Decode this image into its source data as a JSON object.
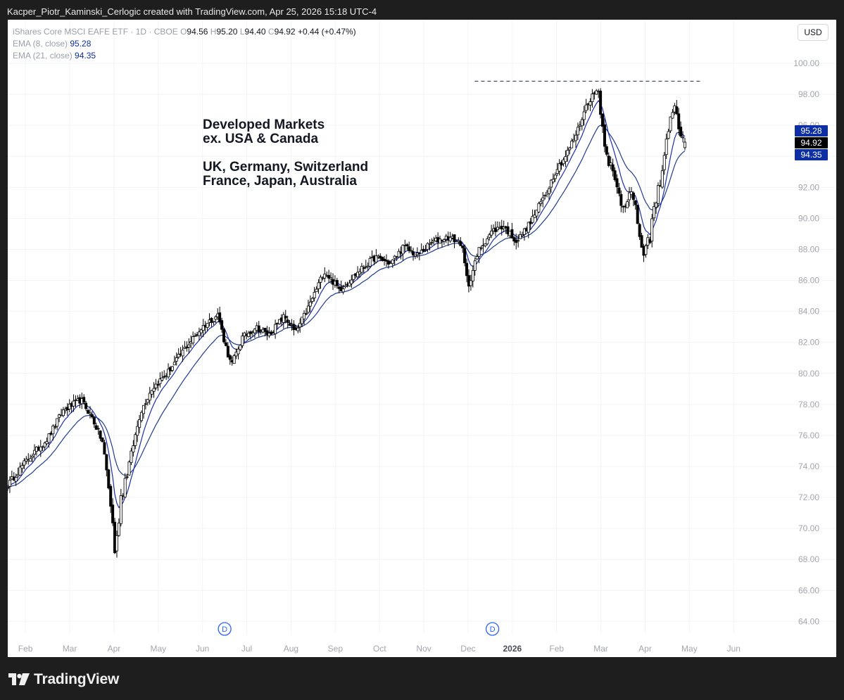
{
  "header": {
    "attribution": "Kacper_Piotr_Kaminski_Cerlogic created with TradingView.com, Apr 25, 2026 15:18 UTC-4"
  },
  "legend": {
    "symbol": "iShares Core MSCI EAFE ETF · 1D · CBOE",
    "o_label": "O",
    "o": "94.56",
    "h_label": "H",
    "h": "95.20",
    "l_label": "L",
    "l": "94.40",
    "c_label": "C",
    "c": "94.92",
    "change": "+0.44 (+0.47%)",
    "ema8_label": "EMA (8, close)",
    "ema8": "95.28",
    "ema21_label": "EMA (21, close)",
    "ema21": "94.35"
  },
  "currency_button": "USD",
  "annotation": {
    "line1": "Developed Markets",
    "line2": "ex. USA & Canada",
    "line3": "UK, Germany, Switzerland",
    "line4": "France, Japan, Australia"
  },
  "footer": {
    "brand": "TradingView"
  },
  "colors": {
    "ema8": "#1c2fa8",
    "ema21": "#203c8c",
    "candle": "#000000",
    "resistance": "#1f2a44"
  },
  "chart_data": {
    "type": "candlestick",
    "y_ticks": [
      "64.00",
      "66.00",
      "68.00",
      "70.00",
      "72.00",
      "74.00",
      "76.00",
      "78.00",
      "80.00",
      "82.00",
      "84.00",
      "86.00",
      "88.00",
      "90.00",
      "92.00",
      "94.00",
      "96.00",
      "98.00",
      "100.00"
    ],
    "ylim": [
      63.2,
      101.0
    ],
    "x_ticks": [
      "Feb",
      "Mar",
      "Apr",
      "May",
      "Jun",
      "Jul",
      "Aug",
      "Sep",
      "Oct",
      "Nov",
      "Dec",
      "2026",
      "Feb",
      "Mar",
      "Apr",
      "May",
      "Jun"
    ],
    "x_tick_months": [
      1,
      2,
      3,
      4,
      5,
      6,
      7,
      8,
      9,
      10,
      11,
      12,
      13,
      14,
      15,
      16,
      17
    ],
    "xlim_months": [
      0.6,
      18.3
    ],
    "series": [
      {
        "name": "EMA (8, close)",
        "last": 95.28
      },
      {
        "name": "EMA (21, close)",
        "last": 94.35
      }
    ],
    "price_labels": [
      {
        "label": "EMA (8, close)",
        "value": "95.28"
      },
      {
        "label": "Close",
        "value": "94.92"
      },
      {
        "label": "EMA (21, close)",
        "value": "94.35"
      }
    ],
    "resistance_level": 98.85,
    "resistance_range_months": [
      11.15,
      16.25
    ],
    "dividend_markers": [
      {
        "month": 5.5,
        "label": "D"
      },
      {
        "month": 11.55,
        "label": "D"
      }
    ],
    "close_anchors": [
      [
        0.6,
        72.8
      ],
      [
        1.0,
        74.3
      ],
      [
        1.5,
        75.8
      ],
      [
        1.85,
        77.6
      ],
      [
        2.25,
        78.3
      ],
      [
        2.5,
        77.2
      ],
      [
        2.75,
        75.5
      ],
      [
        2.95,
        71.0
      ],
      [
        3.03,
        68.2
      ],
      [
        3.15,
        72.0
      ],
      [
        3.35,
        74.3
      ],
      [
        3.6,
        77.5
      ],
      [
        3.85,
        79.0
      ],
      [
        4.2,
        80.0
      ],
      [
        4.6,
        81.6
      ],
      [
        5.0,
        83.0
      ],
      [
        5.35,
        83.8
      ],
      [
        5.5,
        82.0
      ],
      [
        5.65,
        80.5
      ],
      [
        5.9,
        82.3
      ],
      [
        6.2,
        83.0
      ],
      [
        6.5,
        82.5
      ],
      [
        6.85,
        83.7
      ],
      [
        7.1,
        82.6
      ],
      [
        7.4,
        84.3
      ],
      [
        7.75,
        86.6
      ],
      [
        8.1,
        85.4
      ],
      [
        8.5,
        86.5
      ],
      [
        8.9,
        87.5
      ],
      [
        9.25,
        87.1
      ],
      [
        9.55,
        88.2
      ],
      [
        9.85,
        87.6
      ],
      [
        10.2,
        88.5
      ],
      [
        10.55,
        88.8
      ],
      [
        10.85,
        88.4
      ],
      [
        11.0,
        85.6
      ],
      [
        11.25,
        88.0
      ],
      [
        11.55,
        89.2
      ],
      [
        11.8,
        89.5
      ],
      [
        12.1,
        88.5
      ],
      [
        12.4,
        89.7
      ],
      [
        12.75,
        91.6
      ],
      [
        13.0,
        93.2
      ],
      [
        13.2,
        94.0
      ],
      [
        13.45,
        95.5
      ],
      [
        13.7,
        97.5
      ],
      [
        13.95,
        98.4
      ],
      [
        14.0,
        96.4
      ],
      [
        14.15,
        94.2
      ],
      [
        14.3,
        92.4
      ],
      [
        14.5,
        90.8
      ],
      [
        14.65,
        92.0
      ],
      [
        14.85,
        89.5
      ],
      [
        14.97,
        87.3
      ],
      [
        15.07,
        88.3
      ],
      [
        15.2,
        90.5
      ],
      [
        15.35,
        92.4
      ],
      [
        15.5,
        95.4
      ],
      [
        15.65,
        97.4
      ],
      [
        15.8,
        95.4
      ],
      [
        15.9,
        94.9
      ]
    ]
  }
}
